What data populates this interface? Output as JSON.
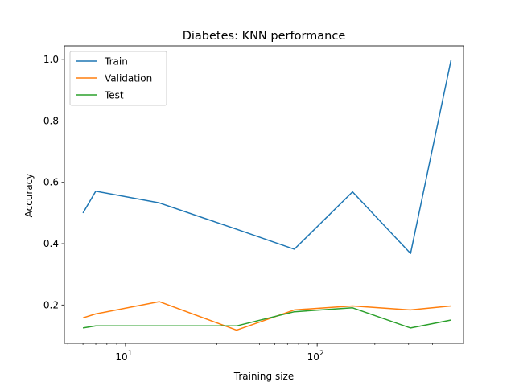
{
  "chart_data": {
    "type": "line",
    "title": "Diabetes: KNN performance",
    "xlabel": "Training size",
    "ylabel": "Accuracy",
    "xscale": "log",
    "xlim": [
      4.8,
      580
    ],
    "ylim": [
      0.075,
      1.045
    ],
    "x_ticks": [
      {
        "value": 10,
        "base": "10",
        "exp": "1"
      },
      {
        "value": 100,
        "base": "10",
        "exp": "2"
      }
    ],
    "y_ticks": [
      {
        "value": 0.2,
        "label": "0.2"
      },
      {
        "value": 0.4,
        "label": "0.4"
      },
      {
        "value": 0.6,
        "label": "0.6"
      },
      {
        "value": 0.8,
        "label": "0.8"
      },
      {
        "value": 1.0,
        "label": "1.0"
      }
    ],
    "x": [
      6,
      7,
      15,
      38,
      76,
      153,
      307,
      500
    ],
    "series": [
      {
        "name": "Train",
        "color": "#1f77b4",
        "values": [
          0.5,
          0.571,
          0.533,
          0.447,
          0.382,
          0.569,
          0.368,
          1.0
        ]
      },
      {
        "name": "Validation",
        "color": "#ff7f0e",
        "values": [
          0.158,
          0.171,
          0.211,
          0.118,
          0.184,
          0.197,
          0.184,
          0.197
        ]
      },
      {
        "name": "Test",
        "color": "#2ca02c",
        "values": [
          0.125,
          0.132,
          0.132,
          0.132,
          0.178,
          0.191,
          0.125,
          0.151
        ]
      }
    ],
    "grid": false,
    "legend": "top-left"
  }
}
